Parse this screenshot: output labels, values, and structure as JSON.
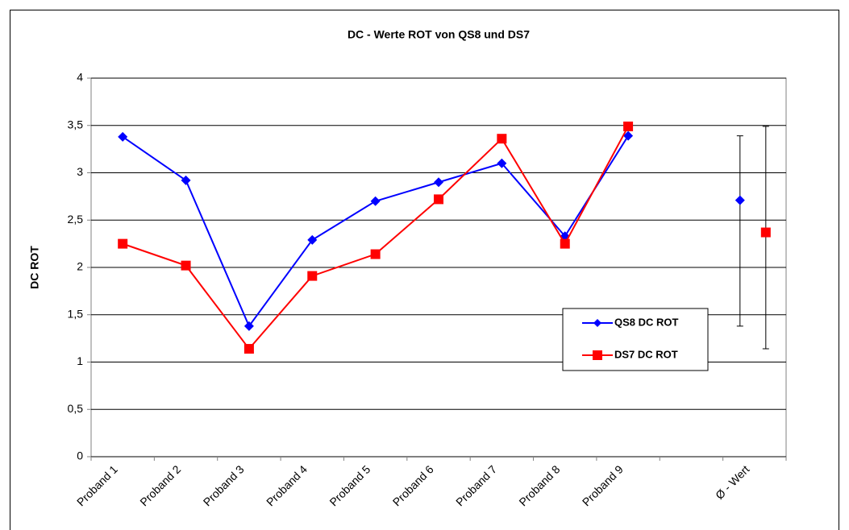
{
  "chart_data": {
    "type": "line",
    "title": "DC - Werte ROT von QS8 und DS7",
    "y_label": "DC ROT",
    "categories": [
      "Proband 1",
      "Proband 2",
      "Proband 3",
      "Proband 4",
      "Proband 5",
      "Proband 6",
      "Proband 7",
      "Proband 8",
      "Proband 9",
      null,
      "Ø - Wert"
    ],
    "series": [
      {
        "name": "QS8 DC ROT",
        "color": "#0000ff",
        "marker": "diamond",
        "values": [
          3.38,
          2.92,
          1.38,
          2.29,
          2.7,
          2.9,
          3.1,
          2.33,
          3.39,
          null,
          2.71
        ],
        "error_minus": [
          null,
          null,
          null,
          null,
          null,
          null,
          null,
          null,
          null,
          null,
          1.33
        ],
        "error_plus": [
          null,
          null,
          null,
          null,
          null,
          null,
          null,
          null,
          null,
          null,
          0.68
        ]
      },
      {
        "name": "DS7 DC ROT",
        "color": "#ff0000",
        "marker": "square",
        "values": [
          2.25,
          2.02,
          1.14,
          1.91,
          2.14,
          2.72,
          3.36,
          2.25,
          3.49,
          null,
          2.37
        ],
        "error_minus": [
          null,
          null,
          null,
          null,
          null,
          null,
          null,
          null,
          null,
          null,
          1.23
        ],
        "error_plus": [
          null,
          null,
          null,
          null,
          null,
          null,
          null,
          null,
          null,
          null,
          1.12
        ]
      }
    ],
    "ylim": [
      0,
      4
    ],
    "yticks": [
      0,
      {
        "value": 0.5,
        "label": "0,5"
      },
      1,
      {
        "value": 1.5,
        "label": "1,5"
      },
      2,
      {
        "value": 2.5,
        "label": "2,5"
      },
      3,
      {
        "value": 3.5,
        "label": "3,5"
      },
      4
    ],
    "grid": true,
    "legend": "inside-right"
  }
}
